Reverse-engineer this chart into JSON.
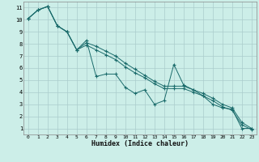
{
  "xlabel": "Humidex (Indice chaleur)",
  "bg_color": "#cceee8",
  "grid_color": "#aacccc",
  "line_color": "#1a6b6b",
  "xlim": [
    -0.5,
    23.5
  ],
  "ylim": [
    0.5,
    11.5
  ],
  "xticks": [
    0,
    1,
    2,
    3,
    4,
    5,
    6,
    7,
    8,
    9,
    10,
    11,
    12,
    13,
    14,
    15,
    16,
    17,
    18,
    19,
    20,
    21,
    22,
    23
  ],
  "yticks": [
    1,
    2,
    3,
    4,
    5,
    6,
    7,
    8,
    9,
    10,
    11
  ],
  "series1_x": [
    0,
    1,
    2,
    3,
    4,
    5,
    6,
    7,
    8,
    9,
    10,
    11,
    12,
    13,
    14,
    15,
    16,
    17,
    18,
    19,
    20,
    21,
    22,
    23
  ],
  "series1_y": [
    10.1,
    10.8,
    11.1,
    9.5,
    9.0,
    7.5,
    8.3,
    5.3,
    5.5,
    5.5,
    4.4,
    3.9,
    4.2,
    3.0,
    3.3,
    6.3,
    4.6,
    4.2,
    3.7,
    3.0,
    2.7,
    2.6,
    1.0,
    1.0
  ],
  "series2_x": [
    0,
    1,
    2,
    3,
    4,
    5,
    6,
    7,
    8,
    9,
    10,
    11,
    12,
    13,
    14,
    15,
    16,
    17,
    18,
    19,
    20,
    21,
    22,
    23
  ],
  "series2_y": [
    10.1,
    10.8,
    11.1,
    9.5,
    9.0,
    7.5,
    8.1,
    7.8,
    7.4,
    7.0,
    6.4,
    5.9,
    5.4,
    4.9,
    4.5,
    4.5,
    4.5,
    4.2,
    3.9,
    3.5,
    3.0,
    2.7,
    1.5,
    1.0
  ],
  "series3_x": [
    0,
    1,
    2,
    3,
    4,
    5,
    6,
    7,
    8,
    9,
    10,
    11,
    12,
    13,
    14,
    15,
    16,
    17,
    18,
    19,
    20,
    21,
    22,
    23
  ],
  "series3_y": [
    10.1,
    10.8,
    11.1,
    9.5,
    9.0,
    7.5,
    7.9,
    7.5,
    7.1,
    6.7,
    6.1,
    5.6,
    5.2,
    4.7,
    4.3,
    4.3,
    4.3,
    4.0,
    3.7,
    3.3,
    2.8,
    2.5,
    1.3,
    0.9
  ]
}
